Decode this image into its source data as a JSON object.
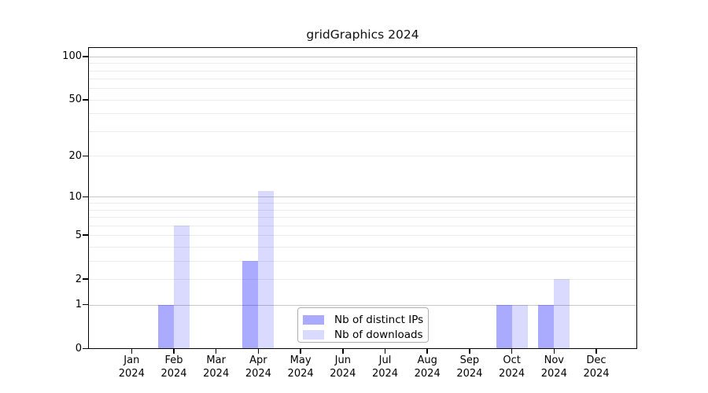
{
  "chart_data": {
    "type": "bar",
    "title": "gridGraphics 2024",
    "categories": [
      "Jan",
      "Feb",
      "Mar",
      "Apr",
      "May",
      "Jun",
      "Jul",
      "Aug",
      "Sep",
      "Oct",
      "Nov",
      "Dec"
    ],
    "category_year": "2024",
    "series": [
      {
        "name": "Nb of distinct IPs",
        "color": "rgba(0,0,255,0.335)",
        "values": [
          0,
          1,
          0,
          3,
          0,
          0,
          0,
          0,
          0,
          1,
          1,
          0
        ]
      },
      {
        "name": "Nb of downloads",
        "color": "rgba(0,0,255,0.145)",
        "values": [
          0,
          6,
          0,
          11,
          0,
          0,
          0,
          0,
          0,
          1,
          2,
          0
        ]
      }
    ],
    "y_scale": "log1p",
    "y_tick_labels": [
      "0",
      "1",
      "2",
      "5",
      "10",
      "20",
      "50",
      "100"
    ],
    "y_tick_values": [
      0,
      1,
      2,
      5,
      10,
      20,
      50,
      100
    ],
    "ylim": [
      0,
      116
    ],
    "grid": {
      "on": true,
      "major_values": [
        1,
        10,
        100
      ],
      "minor_values": [
        2,
        3,
        4,
        5,
        6,
        7,
        8,
        9,
        20,
        30,
        40,
        50,
        60,
        70,
        80,
        90
      ]
    },
    "legend": {
      "position": "bottom-center-inside",
      "entries": [
        "Nb of distinct IPs",
        "Nb of downloads"
      ]
    }
  },
  "colors": {
    "background": "#ffffff",
    "axis": "#000000",
    "grid_major": "#c8c8c8",
    "grid_minor": "#ececec",
    "legend_border": "#b0b0b0",
    "bar_distinct_ips": "rgba(0,0,255,0.335)",
    "bar_downloads": "rgba(0,0,255,0.145)"
  }
}
